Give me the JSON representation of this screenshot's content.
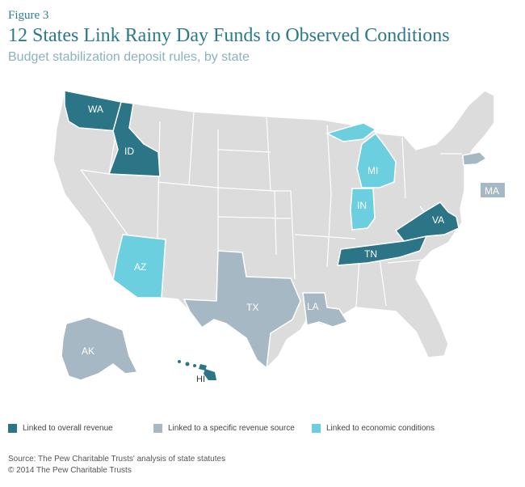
{
  "figure_label": "Figure 3",
  "title": "12 States Link Rainy Day Funds to Observed Conditions",
  "subtitle": "Budget stabilization deposit rules, by state",
  "colors": {
    "overall_revenue": "#2b7587",
    "specific_source": "#a6b8c3",
    "economic": "#6ccfe0",
    "other": "#dcdcdc"
  },
  "states": [
    {
      "abbr": "WA",
      "category": "overall_revenue"
    },
    {
      "abbr": "ID",
      "category": "overall_revenue"
    },
    {
      "abbr": "TN",
      "category": "overall_revenue"
    },
    {
      "abbr": "VA",
      "category": "overall_revenue"
    },
    {
      "abbr": "HI",
      "category": "overall_revenue"
    },
    {
      "abbr": "TX",
      "category": "specific_source"
    },
    {
      "abbr": "LA",
      "category": "specific_source"
    },
    {
      "abbr": "AK",
      "category": "specific_source"
    },
    {
      "abbr": "MA",
      "category": "specific_source"
    },
    {
      "abbr": "AZ",
      "category": "economic"
    },
    {
      "abbr": "MI",
      "category": "economic"
    },
    {
      "abbr": "IN",
      "category": "economic"
    }
  ],
  "legend": {
    "overall_revenue": "Linked to overall revenue",
    "specific_source": "Linked to a specific revenue source",
    "economic": "Linked to economic conditions"
  },
  "source": "Source: The Pew Charitable Trusts' analysis of state statutes",
  "copyright": "© 2014 The Pew Charitable Trusts"
}
